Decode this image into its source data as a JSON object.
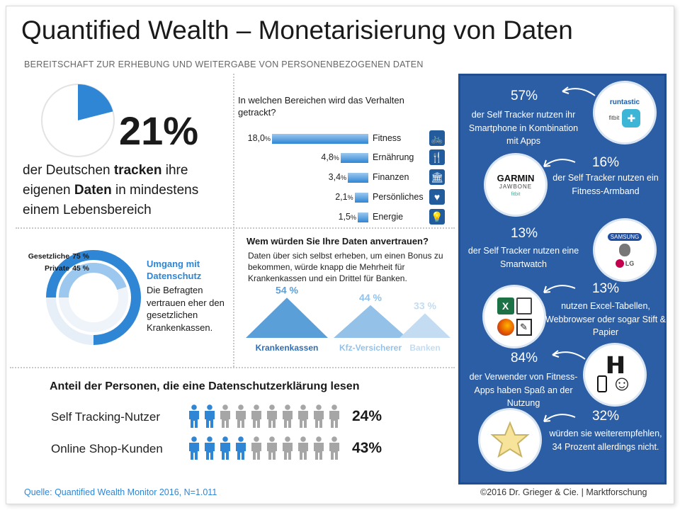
{
  "title": "Quantified Wealth – Monetarisierung von Daten",
  "subtitle": "BEREITSCHAFT ZUR ERHEBUNG UND WEITERGABE VON PERSONENBEZOGENEN DATEN",
  "headline": {
    "pct": "21%",
    "fraction": 0.21,
    "text_pre": "der Deutschen ",
    "text_b1": "tracken",
    "text_mid": " ihre eigenen ",
    "text_b2": "Daten",
    "text_post": " in mindestens einem Lebensbereich"
  },
  "areas": {
    "question": "In welchen Bereichen wird das Verhalten getrackt?",
    "items": [
      {
        "value": "18,0",
        "unit": "%",
        "num": 18.0,
        "label": "Fitness",
        "icon": "bicycle-icon",
        "glyph": "🚲"
      },
      {
        "value": "4,8",
        "unit": "%",
        "num": 4.8,
        "label": "Ernährung",
        "icon": "fork-knife-icon",
        "glyph": "🍴"
      },
      {
        "value": "3,4",
        "unit": "%",
        "num": 3.4,
        "label": "Finanzen",
        "icon": "bank-icon",
        "glyph": "🏛"
      },
      {
        "value": "2,1",
        "unit": "%",
        "num": 2.1,
        "label": "Persönliches",
        "icon": "heart-icon",
        "glyph": "♥"
      },
      {
        "value": "1,5",
        "unit": "%",
        "num": 1.5,
        "label": "Energie",
        "icon": "lightbulb-icon",
        "glyph": "💡"
      }
    ]
  },
  "privacy": {
    "legend": [
      {
        "label": "Gesetzliche",
        "value": "75 %",
        "num": 75
      },
      {
        "label": "Private",
        "value": "45 %",
        "num": 45
      }
    ],
    "title_line1": "Umgang mit",
    "title_line2": "Datenschutz",
    "text": "Die Befragten vertrauen eher den gesetzlichen Krankenkassen.",
    "colors": {
      "outer": "#2f86d4",
      "inner": "#9cc8ef"
    }
  },
  "trust": {
    "question": "Wem würden Sie Ihre Daten anvertrauen?",
    "text": "Daten über sich selbst erheben, um einen Bonus zu bekommen, würde knapp die Mehrheit für Krankenkassen und ein Drittel für Banken.",
    "items": [
      {
        "value": "54 %",
        "num": 54,
        "label": "Krankenkassen",
        "color": "#5b9fd9"
      },
      {
        "value": "44 %",
        "num": 44,
        "label": "Kfz-Versicherer",
        "color": "#93c1e8"
      },
      {
        "value": "33 %",
        "num": 33,
        "label": "Banken",
        "color": "#c3dcf2"
      }
    ]
  },
  "reading": {
    "title": "Anteil der Personen, die eine Datenschutzerklärung  lesen",
    "rows": [
      {
        "label": "Self Tracking-Nutzer",
        "pct": "24%",
        "filled": 2,
        "total": 10
      },
      {
        "label": "Online Shop-Kunden",
        "pct": "43%",
        "filled": 4,
        "total": 10
      }
    ],
    "colors": {
      "filled": "#2f86d4",
      "empty": "#a6a6a6"
    }
  },
  "panel": {
    "items": [
      {
        "pct": "57%",
        "text": "der Self Tracker nutzen ihr Smartphone in Kombination mit Apps",
        "icons": [
          "runtastic-logo",
          "fitbit-logo",
          "app-icon"
        ],
        "logo1": "runtastic",
        "logo2": "fitbit"
      },
      {
        "pct": "16%",
        "text": "der Self Tracker nutzen ein Fitness-Armband",
        "icons": [
          "garmin-logo",
          "jawbone-logo",
          "fitbit-logo"
        ],
        "logo1": "GARMIN",
        "logo2": "JAWBONE",
        "logo3": "fitbit"
      },
      {
        "pct": "13%",
        "text": "der Self Tracker nutzen eine Smartwatch",
        "icons": [
          "samsung-logo",
          "apple-logo",
          "lg-logo"
        ],
        "logo1": "SAMSUNG",
        "logo3": "LG"
      },
      {
        "pct": "13%",
        "text": "nutzen Excel-Tabellen, Webbrowser oder sogar Stift & Papier",
        "icons": [
          "excel-icon",
          "firefox-icon",
          "notepad-icon"
        ]
      },
      {
        "pct": "84%",
        "text": "der Verwender von Fitness-Apps haben Spaß an der Nutzung",
        "icons": [
          "dumbbell-icon",
          "phone-icon",
          "smiley-icon"
        ]
      },
      {
        "pct": "32%",
        "text": "würden sie weiterempfehlen, 34 Prozent allerdings nicht.",
        "icons": [
          "star-icon"
        ]
      }
    ],
    "colors": {
      "bg": "#2c5ea6"
    }
  },
  "footer": {
    "source": "Quelle: Quantified Wealth Monitor 2016, N=1.011",
    "copyright": "©2016 Dr. Grieger & Cie. | Marktforschung"
  }
}
